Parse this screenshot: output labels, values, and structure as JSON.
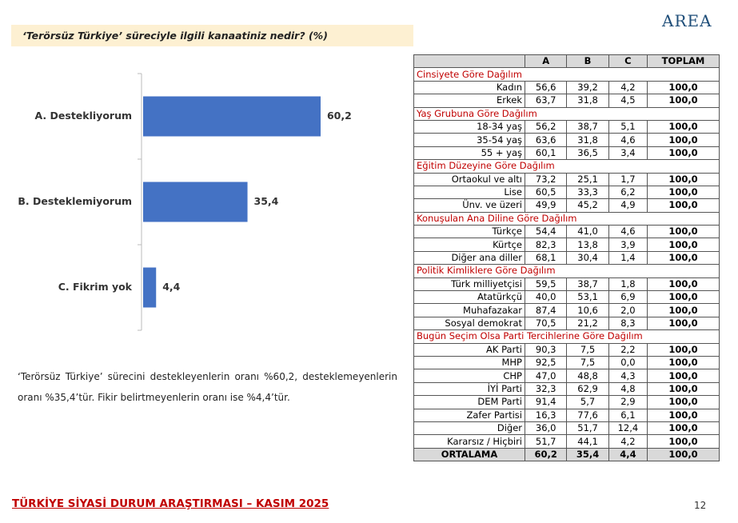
{
  "header": {
    "question": "‘Terörsüz Türkiye’ süreciyle ilgili kanaatiniz nedir? (%)",
    "logo": "AREA"
  },
  "chart_data": {
    "type": "bar",
    "orientation": "horizontal",
    "color": "#4472c4",
    "categories": [
      "A. Destekliyorum",
      "B. Desteklemiyorum",
      "C. Fikrim yok"
    ],
    "values": [
      60.2,
      35.4,
      4.4
    ],
    "value_labels": [
      "60,2",
      "35,4",
      "4,4"
    ],
    "xlim": [
      0,
      80
    ]
  },
  "note": "‘Terörsüz Türkiye’ sürecini destekleyenlerin oranı %60,2, desteklemeyenlerin oranı %35,4’tür. Fikir belirtmeyenlerin oranı ise %4,4’tür.",
  "table": {
    "header": [
      "A",
      "B",
      "C",
      "TOPLAM"
    ],
    "groups": [
      {
        "title": "Cinsiyete Göre Dağılım",
        "rows": [
          [
            "Kadın",
            "56,6",
            "39,2",
            "4,2",
            "100,0"
          ],
          [
            "Erkek",
            "63,7",
            "31,8",
            "4,5",
            "100,0"
          ]
        ]
      },
      {
        "title": "Yaş Grubuna Göre Dağılım",
        "rows": [
          [
            "18-34 yaş",
            "56,2",
            "38,7",
            "5,1",
            "100,0"
          ],
          [
            "35-54 yaş",
            "63,6",
            "31,8",
            "4,6",
            "100,0"
          ],
          [
            "55 + yaş",
            "60,1",
            "36,5",
            "3,4",
            "100,0"
          ]
        ]
      },
      {
        "title": "Eğitim Düzeyine Göre Dağılım",
        "rows": [
          [
            "Ortaokul ve altı",
            "73,2",
            "25,1",
            "1,7",
            "100,0"
          ],
          [
            "Lise",
            "60,5",
            "33,3",
            "6,2",
            "100,0"
          ],
          [
            "Ünv. ve üzeri",
            "49,9",
            "45,2",
            "4,9",
            "100,0"
          ]
        ]
      },
      {
        "title": "Konuşulan Ana Diline Göre Dağılım",
        "rows": [
          [
            "Türkçe",
            "54,4",
            "41,0",
            "4,6",
            "100,0"
          ],
          [
            "Kürtçe",
            "82,3",
            "13,8",
            "3,9",
            "100,0"
          ],
          [
            "Diğer ana diller",
            "68,1",
            "30,4",
            "1,4",
            "100,0"
          ]
        ]
      },
      {
        "title": "Politik Kimliklere Göre Dağılım",
        "rows": [
          [
            "Türk milliyetçisi",
            "59,5",
            "38,7",
            "1,8",
            "100,0"
          ],
          [
            "Atatürkçü",
            "40,0",
            "53,1",
            "6,9",
            "100,0"
          ],
          [
            "Muhafazakar",
            "87,4",
            "10,6",
            "2,0",
            "100,0"
          ],
          [
            "Sosyal demokrat",
            "70,5",
            "21,2",
            "8,3",
            "100,0"
          ]
        ]
      },
      {
        "title": "Bugün Seçim Olsa Parti Tercihlerine Göre Dağılım",
        "rows": [
          [
            "AK Parti",
            "90,3",
            "7,5",
            "2,2",
            "100,0"
          ],
          [
            "MHP",
            "92,5",
            "7,5",
            "0,0",
            "100,0"
          ],
          [
            "CHP",
            "47,0",
            "48,8",
            "4,3",
            "100,0"
          ],
          [
            "İYİ Parti",
            "32,3",
            "62,9",
            "4,8",
            "100,0"
          ],
          [
            "DEM Parti",
            "91,4",
            "5,7",
            "2,9",
            "100,0"
          ],
          [
            "Zafer Partisi",
            "16,3",
            "77,6",
            "6,1",
            "100,0"
          ],
          [
            "Diğer",
            "36,0",
            "51,7",
            "12,4",
            "100,0"
          ],
          [
            "Kararsız / Hiçbiri",
            "51,7",
            "44,1",
            "4,2",
            "100,0"
          ]
        ]
      }
    ],
    "average": [
      "ORTALAMA",
      "60,2",
      "35,4",
      "4,4",
      "100,0"
    ]
  },
  "footer": "TÜRKİYE SİYASİ DURUM ARAŞTIRMASI – KASIM 2025",
  "page_number": "12"
}
